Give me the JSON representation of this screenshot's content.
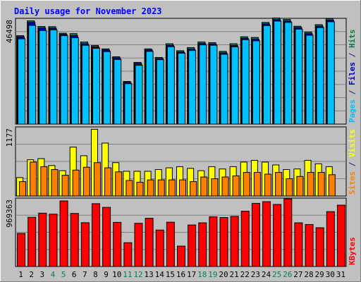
{
  "chart_data": [
    {
      "type": "bar",
      "title": "Daily usage for November 2023",
      "panel": "top",
      "ylabel_parts": [
        {
          "text": "Pages",
          "color": "#00c0ff"
        },
        {
          "text": " / ",
          "color": "#1a1a80"
        },
        {
          "text": "Files",
          "color": "#0000c0"
        },
        {
          "text": " / ",
          "color": "#1a1a80"
        },
        {
          "text": "Hits",
          "color": "#008040"
        }
      ],
      "max_label": "46498",
      "ylim": [
        0,
        46498
      ],
      "categories": [
        "1",
        "2",
        "3",
        "4",
        "5",
        "6",
        "7",
        "8",
        "9",
        "10",
        "11",
        "12",
        "13",
        "14",
        "15",
        "16",
        "17",
        "18",
        "19",
        "20",
        "21",
        "22",
        "23",
        "24",
        "25",
        "26",
        "27",
        "28",
        "29",
        "30",
        "31"
      ],
      "series": [
        {
          "key": "hits",
          "color": "#00805c",
          "values": [
            39400,
            46000,
            43500,
            43400,
            40500,
            40300,
            36600,
            35000,
            33500,
            30000,
            19000,
            27500,
            33500,
            29700,
            35800,
            32700,
            34100,
            36600,
            36300,
            32400,
            35800,
            38900,
            38600,
            45300,
            47300,
            46600,
            43600,
            41000,
            44300,
            47000,
            0
          ]
        },
        {
          "key": "files",
          "color": "#0000c0",
          "values": [
            38900,
            45300,
            42800,
            42700,
            40000,
            39400,
            35800,
            34400,
            33000,
            29500,
            18600,
            27000,
            33000,
            29200,
            35100,
            32100,
            33400,
            35900,
            35700,
            31700,
            35000,
            38200,
            37800,
            44600,
            46600,
            45900,
            43000,
            40300,
            43600,
            46300,
            0
          ]
        },
        {
          "key": "pages",
          "color": "#00c0ff",
          "values": [
            38000,
            44000,
            41700,
            42000,
            39400,
            38500,
            35100,
            33800,
            32300,
            28800,
            18000,
            26200,
            32400,
            28700,
            34500,
            31600,
            32800,
            35300,
            35100,
            31100,
            34400,
            37600,
            37100,
            43900,
            45900,
            45300,
            42300,
            39600,
            43000,
            45600,
            0
          ]
        }
      ]
    },
    {
      "type": "bar",
      "panel": "middle",
      "ylabel_parts": [
        {
          "text": "Sites",
          "color": "#ff8000"
        },
        {
          "text": " / ",
          "color": "#1a1a80"
        },
        {
          "text": "Visits",
          "color": "#ffff00"
        }
      ],
      "max_label": "1177",
      "ylim": [
        0,
        1177
      ],
      "categories": [
        "1",
        "2",
        "3",
        "4",
        "5",
        "6",
        "7",
        "8",
        "9",
        "10",
        "11",
        "12",
        "13",
        "14",
        "15",
        "16",
        "17",
        "18",
        "19",
        "20",
        "21",
        "22",
        "23",
        "24",
        "25",
        "26",
        "27",
        "28",
        "29",
        "30",
        "31"
      ],
      "series": [
        {
          "key": "visits",
          "color": "#ffff00",
          "values": [
            320,
            630,
            650,
            530,
            440,
            850,
            700,
            1160,
            920,
            580,
            430,
            430,
            430,
            460,
            490,
            510,
            480,
            440,
            510,
            470,
            510,
            590,
            620,
            590,
            540,
            460,
            470,
            620,
            560,
            510,
            0
          ]
        },
        {
          "key": "sites",
          "color": "#ff8000",
          "values": [
            250,
            590,
            510,
            460,
            360,
            450,
            500,
            580,
            490,
            420,
            270,
            240,
            280,
            280,
            280,
            280,
            250,
            330,
            300,
            330,
            350,
            410,
            410,
            380,
            410,
            300,
            340,
            410,
            410,
            370,
            0
          ]
        }
      ]
    },
    {
      "type": "bar",
      "panel": "bottom",
      "ylabel_parts": [
        {
          "text": "KBytes",
          "color": "#ff0000"
        }
      ],
      "max_label": "969363",
      "ylim": [
        0,
        969363
      ],
      "categories": [
        "1",
        "2",
        "3",
        "4",
        "5",
        "6",
        "7",
        "8",
        "9",
        "10",
        "11",
        "12",
        "13",
        "14",
        "15",
        "16",
        "17",
        "18",
        "19",
        "20",
        "21",
        "22",
        "23",
        "24",
        "25",
        "26",
        "27",
        "28",
        "29",
        "30",
        "31"
      ],
      "series": [
        {
          "key": "kbytes",
          "color": "#ff0000",
          "values": [
            478000,
            712000,
            772000,
            758000,
            949000,
            768000,
            634000,
            909000,
            856000,
            639000,
            345000,
            625000,
            698000,
            528000,
            641000,
            295000,
            601000,
            632000,
            719000,
            709000,
            725000,
            800000,
            914000,
            938000,
            898000,
            978000,
            632000,
            608000,
            561000,
            794000,
            888000
          ]
        }
      ]
    }
  ],
  "x_label_colors": {
    "weekday": "#000000",
    "weekend": "#00805c"
  },
  "weekend_days": [
    4,
    5,
    11,
    12,
    18,
    19,
    25,
    26
  ],
  "colors": {
    "background": "#c0c0c0",
    "title": "#0000ff",
    "grid": "#808080"
  }
}
